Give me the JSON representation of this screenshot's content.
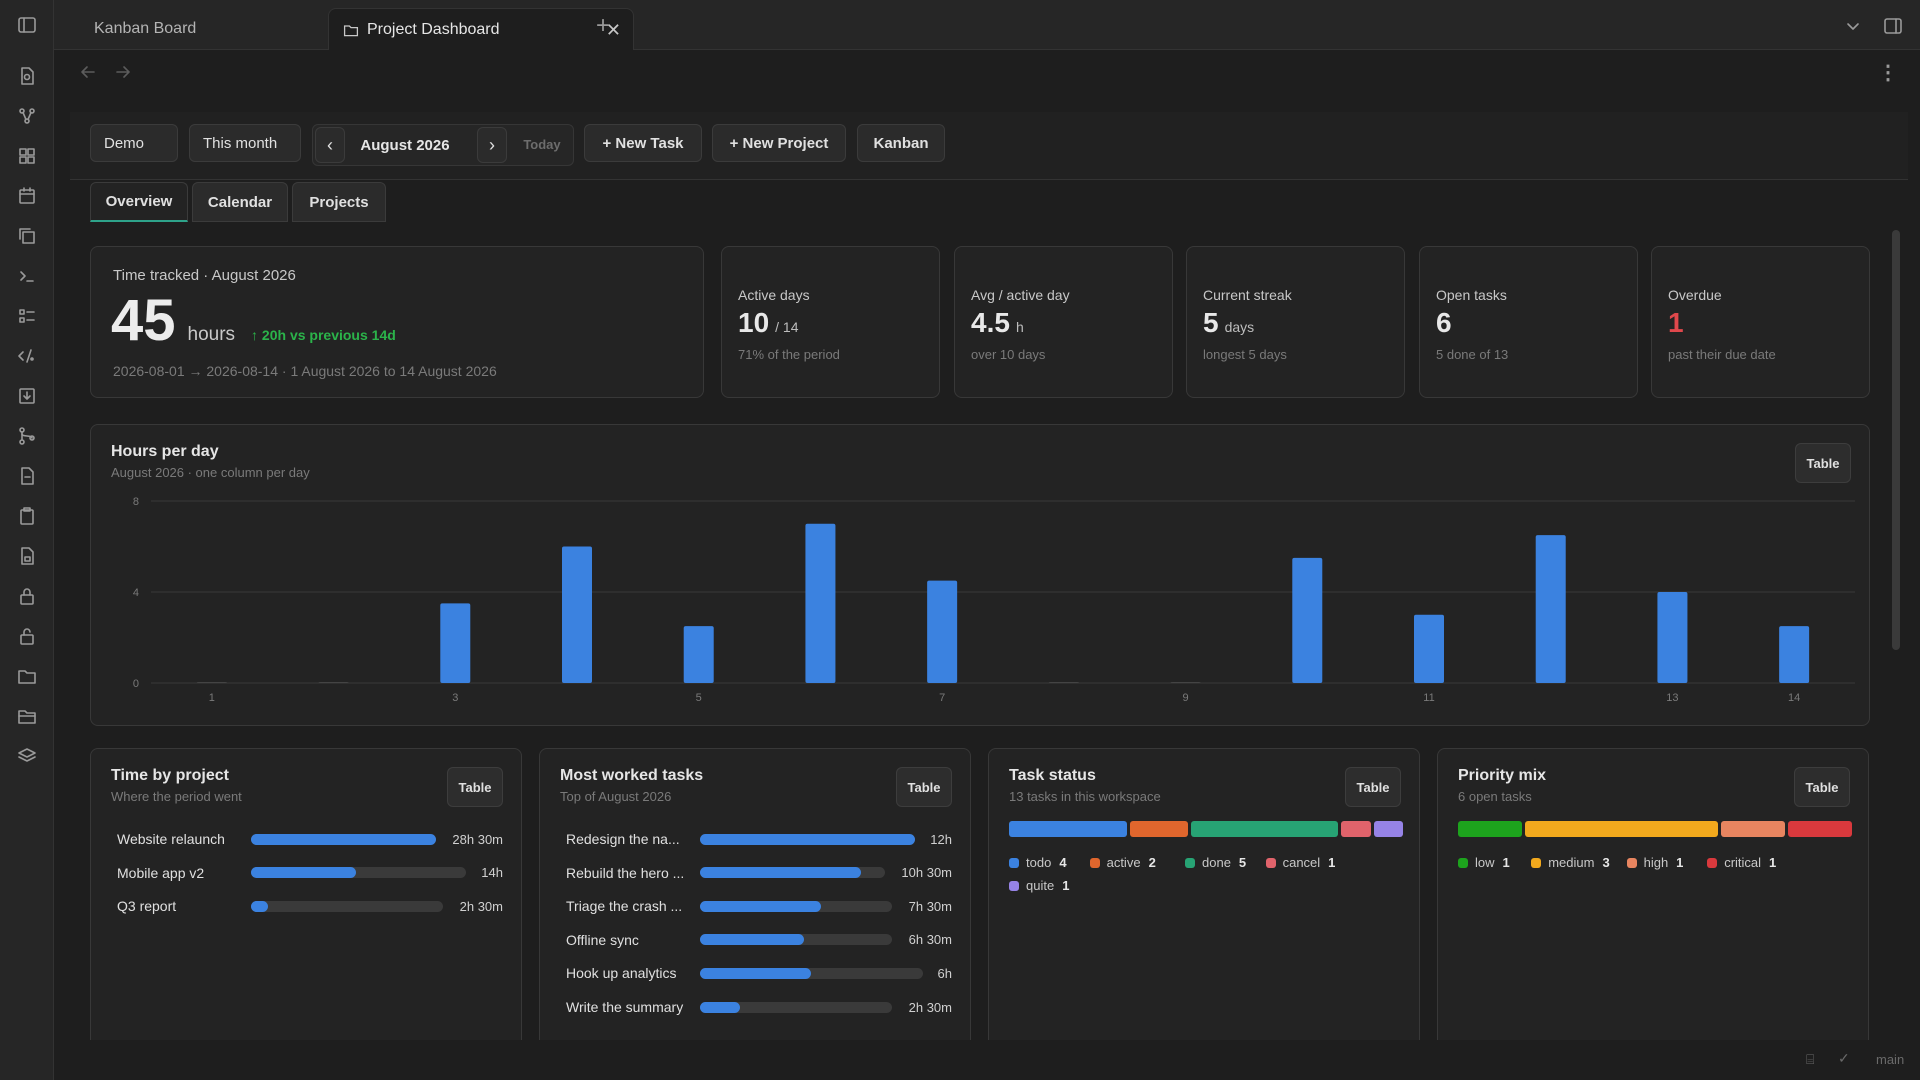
{
  "tabs": [
    {
      "label": "Kanban Board",
      "active": false
    },
    {
      "label": "Project Dashboard",
      "active": true
    }
  ],
  "toolbar": {
    "workspace": "Demo",
    "range": "This month",
    "month": "August 2026",
    "today": "Today",
    "new_task": "+ New Task",
    "new_project": "+ New Project",
    "kanban": "Kanban",
    "prev": "‹",
    "next": "›"
  },
  "view_tabs": [
    "Overview",
    "Calendar",
    "Projects"
  ],
  "time_tracked": {
    "label": "Time tracked · August 2026",
    "value": "45",
    "unit": "hours",
    "delta": "↑ 20h vs previous 14d",
    "range": "2026-08-01 → 2026-08-14 · 1 August 2026 to 14 August 2026"
  },
  "kpis": [
    {
      "label": "Active days",
      "value": "10",
      "unit": "/ 14",
      "sub": "71% of the period",
      "color": "#e8e8e8"
    },
    {
      "label": "Avg / active day",
      "value": "4.5",
      "unit": "h",
      "sub": "over 10 days",
      "color": "#e8e8e8"
    },
    {
      "label": "Current streak",
      "value": "5",
      "unit": "days",
      "sub": "longest 5 days",
      "color": "#e8e8e8"
    },
    {
      "label": "Open tasks",
      "value": "6",
      "unit": "",
      "sub": "5 done of 13",
      "color": "#e8e8e8"
    },
    {
      "label": "Overdue",
      "value": "1",
      "unit": "",
      "sub": "past their due date",
      "color": "#e0484c"
    }
  ],
  "hours_chart": {
    "title": "Hours per day",
    "subtitle": "August 2026 · one column per day",
    "table_label": "Table",
    "chart_data": {
      "type": "bar",
      "categories": [
        "1",
        "2",
        "3",
        "4",
        "5",
        "6",
        "7",
        "8",
        "9",
        "10",
        "11",
        "12",
        "13",
        "14"
      ],
      "values": [
        0,
        0,
        3.5,
        6,
        2.5,
        7,
        4.5,
        0,
        0,
        5.5,
        3,
        6.5,
        4,
        2.5
      ],
      "tick_labels": [
        "1",
        "3",
        "5",
        "7",
        "9",
        "11",
        "13",
        "14"
      ],
      "ylim": [
        0,
        8
      ],
      "yticks": [
        "8",
        "4",
        "0"
      ],
      "grid": true,
      "color": "#3b82e0"
    }
  },
  "time_by_project": {
    "title": "Time by project",
    "subtitle": "Where the period went",
    "table_label": "Table",
    "rows": [
      {
        "label": "Website relaunch",
        "value": "28h 30m",
        "fraction": 1.0
      },
      {
        "label": "Mobile app v2",
        "value": "14h",
        "fraction": 0.49
      },
      {
        "label": "Q3 report",
        "value": "2h 30m",
        "fraction": 0.09
      }
    ]
  },
  "most_worked": {
    "title": "Most worked tasks",
    "subtitle": "Top of August 2026",
    "table_label": "Table",
    "rows": [
      {
        "label": "Redesign the na...",
        "value": "12h",
        "fraction": 1.0
      },
      {
        "label": "Rebuild the hero ...",
        "value": "10h 30m",
        "fraction": 0.87
      },
      {
        "label": "Triage the crash ...",
        "value": "7h 30m",
        "fraction": 0.63
      },
      {
        "label": "Offline sync",
        "value": "6h 30m",
        "fraction": 0.54
      },
      {
        "label": "Hook up analytics",
        "value": "6h",
        "fraction": 0.5
      },
      {
        "label": "Write the summary",
        "value": "2h 30m",
        "fraction": 0.21
      }
    ]
  },
  "task_status": {
    "title": "Task status",
    "subtitle": "13 tasks in this workspace",
    "table_label": "Table",
    "items": [
      {
        "label": "todo",
        "count": "4",
        "value": 4,
        "color": "#3b82e0"
      },
      {
        "label": "active",
        "count": "2",
        "value": 2,
        "color": "#e0662d"
      },
      {
        "label": "done",
        "count": "5",
        "value": 5,
        "color": "#27a374"
      },
      {
        "label": "cancel",
        "count": "1",
        "value": 1,
        "color": "#e0636b"
      },
      {
        "label": "quite",
        "count": "1",
        "value": 1,
        "color": "#9683e6"
      }
    ]
  },
  "priority_mix": {
    "title": "Priority mix",
    "subtitle": "6 open tasks",
    "table_label": "Table",
    "items": [
      {
        "label": "low",
        "count": "1",
        "value": 1,
        "color": "#1da31d"
      },
      {
        "label": "medium",
        "count": "3",
        "value": 3,
        "color": "#f2a91d"
      },
      {
        "label": "high",
        "count": "1",
        "value": 1,
        "color": "#e88560"
      },
      {
        "label": "critical",
        "count": "1",
        "value": 1,
        "color": "#d9393d"
      }
    ]
  },
  "status_bar": {
    "branch": "main"
  }
}
